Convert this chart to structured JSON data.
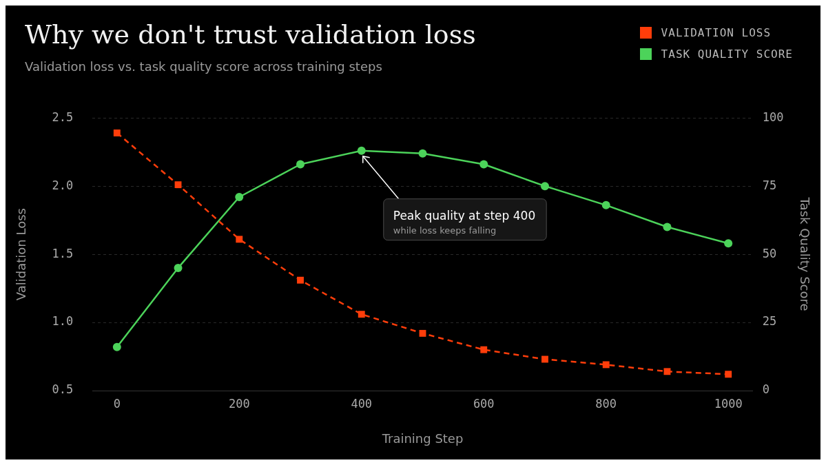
{
  "chart_data": {
    "type": "line",
    "title": "Why we don't trust validation loss",
    "subtitle": "Validation loss vs. task quality score across training steps",
    "xlabel": "Training Step",
    "ylabel": "Validation Loss",
    "y2label": "Task Quality Score",
    "x": [
      0,
      100,
      200,
      300,
      400,
      500,
      600,
      700,
      800,
      900,
      1000
    ],
    "series": [
      {
        "name": "VALIDATION LOSS",
        "color": "#ff3d0a",
        "values": [
          2.39,
          2.01,
          1.61,
          1.31,
          1.06,
          0.92,
          0.8,
          0.73,
          0.69,
          0.64,
          0.62
        ],
        "marker": "square",
        "line_style": "dashed"
      },
      {
        "name": "TASK QUALITY SCORE",
        "color": "#4cd35a",
        "values": [
          16,
          45,
          71,
          83,
          88,
          87,
          83,
          75,
          68,
          60,
          54
        ],
        "axis": "y2",
        "marker": "circle",
        "line_style": "solid"
      }
    ],
    "xlim": [
      -40,
      1040
    ],
    "xticks": [
      0,
      200,
      400,
      600,
      800,
      1000
    ],
    "ylim": [
      0.5,
      2.5
    ],
    "yticks": [
      0.5,
      {
        "value": 1,
        "label": "1.0"
      },
      1.5,
      {
        "value": 2,
        "label": "2.0"
      },
      2.5
    ],
    "y2lim": [
      0,
      100
    ],
    "y2ticks": [
      0,
      25,
      50,
      75,
      100
    ],
    "grid": "y",
    "legend": "top right",
    "annotations": [
      {
        "text": "Peak quality at step 400",
        "x": 400,
        "y": 2.26
      },
      "while loss keeps falling"
    ]
  }
}
